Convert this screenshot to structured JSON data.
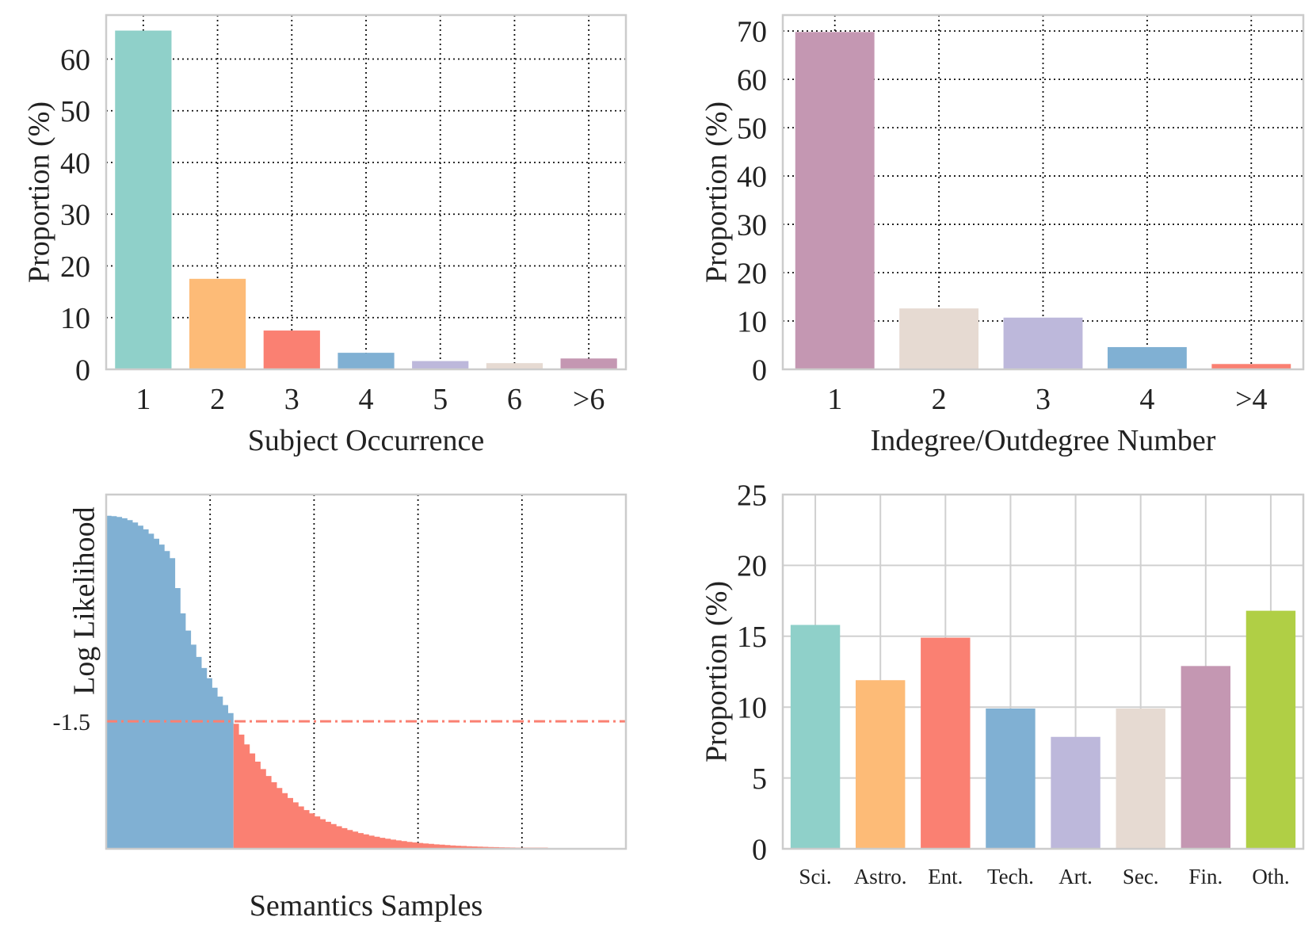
{
  "chart_data": [
    {
      "type": "bar",
      "xlabel": "Subject Occurrence",
      "ylabel": "Proportion (%)",
      "categories": [
        "1",
        "2",
        "3",
        "4",
        "5",
        "6",
        ">6"
      ],
      "values": [
        65.5,
        17.5,
        7.5,
        3.2,
        1.6,
        1.2,
        2.1
      ],
      "ylim": [
        0,
        68.5
      ],
      "yticks": [
        "0",
        "10",
        "20",
        "30",
        "40",
        "50",
        "60"
      ],
      "colors": [
        "#8fd0c9",
        "#fdbb77",
        "#fa8072",
        "#80b0d3",
        "#bdb8db",
        "#e6dad2",
        "#c497b2"
      ],
      "grid": "dotted"
    },
    {
      "type": "bar",
      "xlabel": "Indegree/Outdegree Number",
      "ylabel": "Proportion (%)",
      "categories": [
        "1",
        "2",
        "3",
        "4",
        ">4"
      ],
      "values": [
        69.8,
        12.6,
        10.7,
        4.6,
        1.1
      ],
      "ylim": [
        0,
        73.3
      ],
      "yticks": [
        "0",
        "10",
        "20",
        "30",
        "40",
        "50",
        "60",
        "70"
      ],
      "colors": [
        "#c497b2",
        "#e6dad2",
        "#bdb8db",
        "#80b0d3",
        "#fa8072"
      ],
      "grid": "dotted"
    },
    {
      "type": "area",
      "xlabel": "Semantics Samples",
      "ylabel": "Log Likelihood",
      "yticks": [
        "-1.5"
      ],
      "threshold": -1.5,
      "colors": {
        "above": "#80b0d3",
        "below": "#fa8072",
        "threshold_line": "#fa8072"
      },
      "grid": "dotted"
    },
    {
      "type": "bar",
      "xlabel": "",
      "ylabel": "Proportion (%)",
      "categories": [
        "Sci.",
        "Astro.",
        "Ent.",
        "Tech.",
        "Art.",
        "Sec.",
        "Fin.",
        "Oth."
      ],
      "values": [
        15.8,
        11.9,
        14.9,
        9.9,
        7.9,
        9.9,
        12.9,
        16.8
      ],
      "ylim": [
        0,
        25
      ],
      "yticks": [
        "0",
        "5",
        "10",
        "15",
        "20",
        "25"
      ],
      "colors": [
        "#8fd0c9",
        "#fdbb77",
        "#fa8072",
        "#80b0d3",
        "#bdb8db",
        "#e6dad2",
        "#c497b2",
        "#b0cf45"
      ],
      "grid": "solid"
    }
  ]
}
